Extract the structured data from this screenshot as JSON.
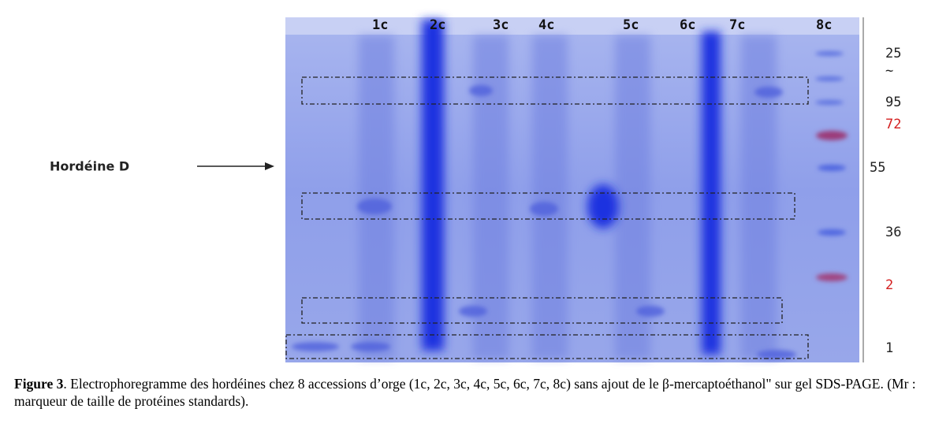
{
  "gel": {
    "lanes": [
      "1c",
      "2c",
      "3c",
      "4c",
      "5c",
      "6c",
      "7c",
      "8c"
    ],
    "markers": [
      "25",
      "~",
      "95",
      "72",
      "55",
      "36",
      "2",
      "1"
    ],
    "annotation": "Hordéine D"
  },
  "caption": {
    "label": "Figure 3",
    "text": ". Electrophoregramme des hordéines chez 8 accessions d’orge (1c, 2c, 3c, 4c, 5c, 6c, 7c, 8c) sans ajout de le β-mercaptoéthanol\" sur gel SDS-PAGE. (Mr : marqueur de taille de protéines standards)."
  }
}
